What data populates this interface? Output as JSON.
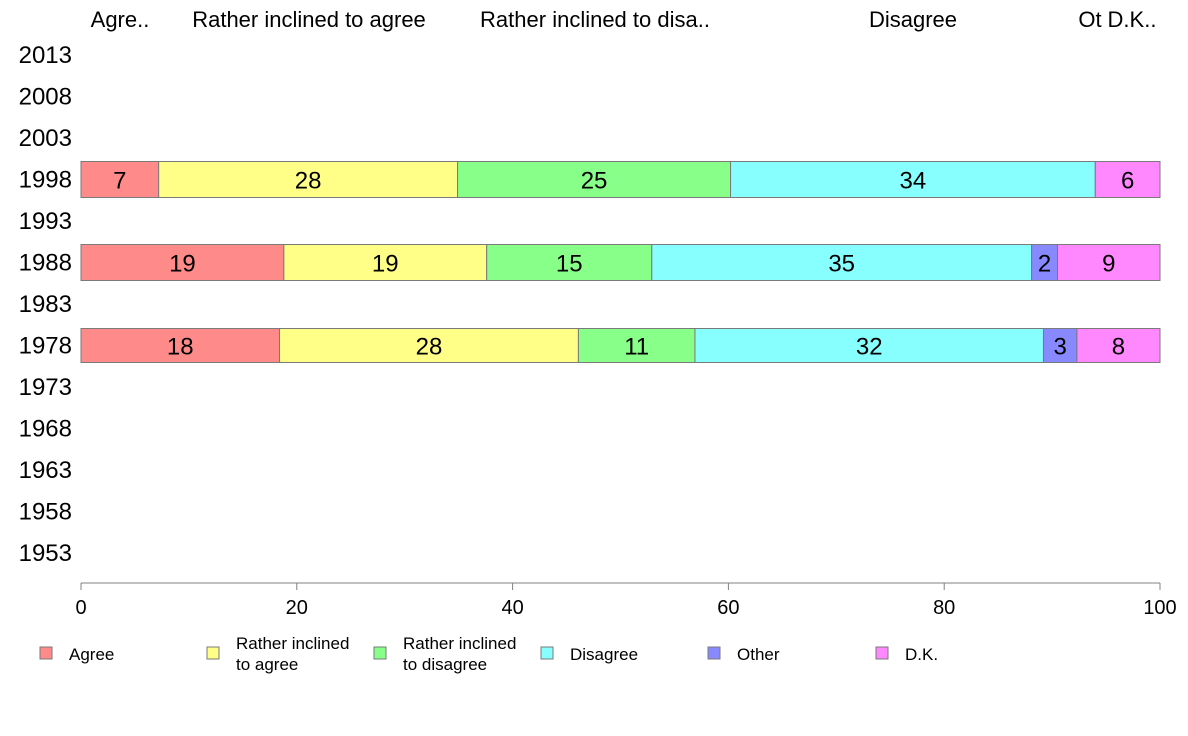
{
  "chart_data": {
    "type": "bar",
    "orientation": "horizontal",
    "stacked": true,
    "xlim": [
      0,
      100
    ],
    "x_ticks": [
      0,
      20,
      40,
      60,
      80,
      100
    ],
    "grid": false,
    "legend_position": "bottom",
    "categories": [
      "2013",
      "2008",
      "2003",
      "1998",
      "1993",
      "1988",
      "1983",
      "1978",
      "1973",
      "1968",
      "1963",
      "1958",
      "1953"
    ],
    "top_labels": [
      "Agre..",
      "Rather inclined to agree",
      "Rather inclined to disa..",
      "Disagree",
      "Ot",
      "D.K.."
    ],
    "series": [
      {
        "name": "Agree",
        "legend_lines": [
          "Agree"
        ],
        "color": "#ff8a8a",
        "values": [
          null,
          null,
          null,
          7.2,
          null,
          18.8,
          null,
          18.4,
          null,
          null,
          null,
          null,
          null
        ],
        "labels": [
          "",
          "",
          "",
          "7",
          "",
          "19",
          "",
          "18",
          "",
          "",
          "",
          "",
          ""
        ]
      },
      {
        "name": "Rather inclined to agree",
        "legend_lines": [
          "Rather inclined",
          "to agree"
        ],
        "color": "#ffff88",
        "values": [
          null,
          null,
          null,
          27.7,
          null,
          18.8,
          null,
          27.7,
          null,
          null,
          null,
          null,
          null
        ],
        "labels": [
          "",
          "",
          "",
          "28",
          "",
          "19",
          "",
          "28",
          "",
          "",
          "",
          "",
          ""
        ]
      },
      {
        "name": "Rather inclined to disagree",
        "legend_lines": [
          "Rather inclined",
          "to disagree"
        ],
        "color": "#88ff88",
        "values": [
          null,
          null,
          null,
          25.3,
          null,
          15.3,
          null,
          10.8,
          null,
          null,
          null,
          null,
          null
        ],
        "labels": [
          "",
          "",
          "",
          "25",
          "",
          "15",
          "",
          "11",
          "",
          "",
          "",
          "",
          ""
        ]
      },
      {
        "name": "Disagree",
        "legend_lines": [
          "Disagree"
        ],
        "color": "#88ffff",
        "values": [
          null,
          null,
          null,
          33.8,
          null,
          35.2,
          null,
          32.3,
          null,
          null,
          null,
          null,
          null
        ],
        "labels": [
          "",
          "",
          "",
          "34",
          "",
          "35",
          "",
          "32",
          "",
          "",
          "",
          "",
          ""
        ]
      },
      {
        "name": "Other",
        "legend_lines": [
          "Other"
        ],
        "color": "#8888ff",
        "values": [
          null,
          null,
          null,
          0,
          null,
          2.4,
          null,
          3.1,
          null,
          null,
          null,
          null,
          null
        ],
        "labels": [
          "",
          "",
          "",
          "",
          "",
          "2",
          "",
          "3",
          "",
          "",
          "",
          "",
          ""
        ]
      },
      {
        "name": "D.K.",
        "legend_lines": [
          "D.K."
        ],
        "color": "#ff88ff",
        "values": [
          null,
          null,
          null,
          6.0,
          null,
          9.5,
          null,
          7.7,
          null,
          null,
          null,
          null,
          null
        ],
        "labels": [
          "",
          "",
          "",
          "6",
          "",
          "9",
          "",
          "8",
          "",
          "",
          "",
          "",
          ""
        ]
      }
    ]
  }
}
